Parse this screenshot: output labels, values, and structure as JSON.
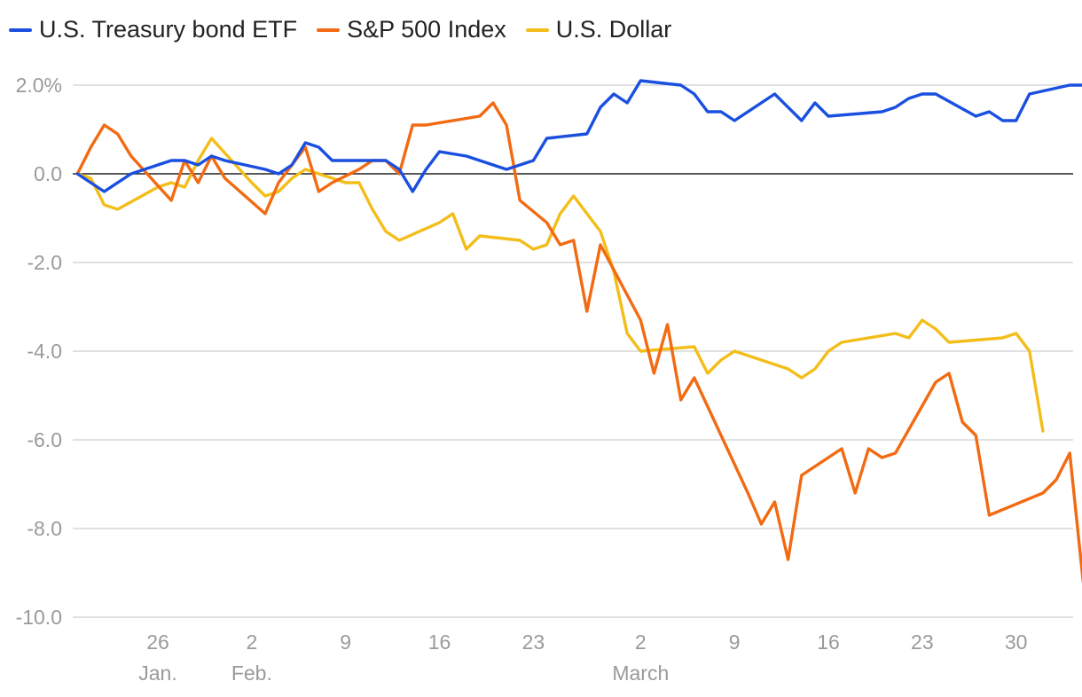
{
  "chart_data": {
    "type": "line",
    "title": "",
    "xlabel": "",
    "ylabel": "",
    "ylim": [
      -10,
      2.4
    ],
    "grid": true,
    "legend_position": "top-left",
    "y_ticks": [
      {
        "value": 2,
        "label": "2.0%"
      },
      {
        "value": 0,
        "label": "0.0"
      },
      {
        "value": -2,
        "label": "-2.0"
      },
      {
        "value": -4,
        "label": "-4.0"
      },
      {
        "value": -6,
        "label": "-6.0"
      },
      {
        "value": -8,
        "label": "-8.0"
      },
      {
        "value": -10,
        "label": "-10.0"
      }
    ],
    "x_ticks": [
      {
        "date": "2020-01-26",
        "label": "26"
      },
      {
        "date": "2020-02-02",
        "label": "2"
      },
      {
        "date": "2020-02-09",
        "label": "9"
      },
      {
        "date": "2020-02-16",
        "label": "16"
      },
      {
        "date": "2020-02-23",
        "label": "23"
      },
      {
        "date": "2020-03-02",
        "label": "2"
      },
      {
        "date": "2020-03-09",
        "label": "9"
      },
      {
        "date": "2020-03-16",
        "label": "16"
      },
      {
        "date": "2020-03-23",
        "label": "23"
      },
      {
        "date": "2020-03-30",
        "label": "30"
      }
    ],
    "month_labels": [
      {
        "date": "2020-01-26",
        "label": "Jan."
      },
      {
        "date": "2020-02-02",
        "label": "Feb."
      },
      {
        "date": "2020-03-02",
        "label": "March"
      }
    ],
    "series": [
      {
        "name": "U.S. Treasury bond ETF",
        "color": "#1a4fe0",
        "points": [
          [
            "2020-01-20",
            0.0
          ],
          [
            "2020-01-21",
            -0.2
          ],
          [
            "2020-01-22",
            -0.4
          ],
          [
            "2020-01-23",
            -0.2
          ],
          [
            "2020-01-24",
            0.0
          ],
          [
            "2020-01-27",
            0.3
          ],
          [
            "2020-01-28",
            0.3
          ],
          [
            "2020-01-29",
            0.2
          ],
          [
            "2020-01-30",
            0.4
          ],
          [
            "2020-01-31",
            0.3
          ],
          [
            "2020-02-03",
            0.1
          ],
          [
            "2020-02-04",
            0.0
          ],
          [
            "2020-02-05",
            0.2
          ],
          [
            "2020-02-06",
            0.7
          ],
          [
            "2020-02-07",
            0.6
          ],
          [
            "2020-02-08",
            0.3
          ],
          [
            "2020-02-10",
            0.3
          ],
          [
            "2020-02-11",
            0.3
          ],
          [
            "2020-02-12",
            0.3
          ],
          [
            "2020-02-13",
            0.1
          ],
          [
            "2020-02-14",
            -0.4
          ],
          [
            "2020-02-15",
            0.1
          ],
          [
            "2020-02-16",
            0.5
          ],
          [
            "2020-02-18",
            0.4
          ],
          [
            "2020-02-20",
            0.2
          ],
          [
            "2020-02-21",
            0.1
          ],
          [
            "2020-02-22",
            0.2
          ],
          [
            "2020-02-23",
            0.3
          ],
          [
            "2020-02-24",
            0.8
          ],
          [
            "2020-02-27",
            0.9
          ],
          [
            "2020-02-28",
            1.5
          ],
          [
            "2020-02-29",
            1.8
          ],
          [
            "2020-03-01",
            1.6
          ],
          [
            "2020-03-02",
            2.1
          ],
          [
            "2020-03-05",
            2.0
          ],
          [
            "2020-03-06",
            1.8
          ],
          [
            "2020-03-07",
            1.4
          ],
          [
            "2020-03-08",
            1.4
          ],
          [
            "2020-03-09",
            1.2
          ],
          [
            "2020-03-12",
            1.8
          ],
          [
            "2020-03-14",
            1.2
          ],
          [
            "2020-03-15",
            1.6
          ],
          [
            "2020-03-16",
            1.3
          ],
          [
            "2020-03-20",
            1.4
          ],
          [
            "2020-03-21",
            1.5
          ],
          [
            "2020-03-22",
            1.7
          ],
          [
            "2020-03-23",
            1.8
          ],
          [
            "2020-03-24",
            1.8
          ],
          [
            "2020-03-27",
            1.3
          ],
          [
            "2020-03-28",
            1.4
          ],
          [
            "2020-03-29",
            1.2
          ],
          [
            "2020-03-30",
            1.2
          ],
          [
            "2020-03-31",
            1.8
          ],
          [
            "2020-04-03",
            2.0
          ],
          [
            "2020-04-04",
            2.0
          ],
          [
            "2020-04-05",
            1.9
          ],
          [
            "2020-04-06",
            2.6
          ]
        ]
      },
      {
        "name": "S&P 500 Index",
        "color": "#f26a12",
        "points": [
          [
            "2020-01-20",
            0.0
          ],
          [
            "2020-01-21",
            0.6
          ],
          [
            "2020-01-22",
            1.1
          ],
          [
            "2020-01-23",
            0.9
          ],
          [
            "2020-01-24",
            0.4
          ],
          [
            "2020-01-27",
            -0.6
          ],
          [
            "2020-01-28",
            0.3
          ],
          [
            "2020-01-29",
            -0.2
          ],
          [
            "2020-01-30",
            0.4
          ],
          [
            "2020-01-31",
            -0.1
          ],
          [
            "2020-02-03",
            -0.9
          ],
          [
            "2020-02-04",
            -0.2
          ],
          [
            "2020-02-05",
            0.2
          ],
          [
            "2020-02-06",
            0.6
          ],
          [
            "2020-02-07",
            -0.4
          ],
          [
            "2020-02-08",
            -0.2
          ],
          [
            "2020-02-10",
            0.1
          ],
          [
            "2020-02-11",
            0.3
          ],
          [
            "2020-02-12",
            0.3
          ],
          [
            "2020-02-13",
            0.0
          ],
          [
            "2020-02-14",
            1.1
          ],
          [
            "2020-02-15",
            1.1
          ],
          [
            "2020-02-19",
            1.3
          ],
          [
            "2020-02-20",
            1.6
          ],
          [
            "2020-02-21",
            1.1
          ],
          [
            "2020-02-22",
            -0.6
          ],
          [
            "2020-02-24",
            -1.1
          ],
          [
            "2020-02-25",
            -1.6
          ],
          [
            "2020-02-26",
            -1.5
          ],
          [
            "2020-02-27",
            -3.1
          ],
          [
            "2020-02-28",
            -1.6
          ],
          [
            "2020-03-02",
            -3.3
          ],
          [
            "2020-03-03",
            -4.5
          ],
          [
            "2020-03-04",
            -3.4
          ],
          [
            "2020-03-05",
            -5.1
          ],
          [
            "2020-03-06",
            -4.6
          ],
          [
            "2020-03-10",
            -7.2
          ],
          [
            "2020-03-11",
            -7.9
          ],
          [
            "2020-03-12",
            -7.4
          ],
          [
            "2020-03-13",
            -8.7
          ],
          [
            "2020-03-14",
            -6.8
          ],
          [
            "2020-03-17",
            -6.2
          ],
          [
            "2020-03-18",
            -7.2
          ],
          [
            "2020-03-19",
            -6.2
          ],
          [
            "2020-03-20",
            -6.4
          ],
          [
            "2020-03-21",
            -6.3
          ],
          [
            "2020-03-24",
            -4.7
          ],
          [
            "2020-03-25",
            -4.5
          ],
          [
            "2020-03-26",
            -5.6
          ],
          [
            "2020-03-27",
            -5.9
          ],
          [
            "2020-03-28",
            -7.7
          ],
          [
            "2020-04-01",
            -7.2
          ],
          [
            "2020-04-02",
            -6.9
          ],
          [
            "2020-04-03",
            -6.3
          ],
          [
            "2020-04-04",
            -9.2
          ]
        ]
      },
      {
        "name": "U.S. Dollar",
        "color": "#f3bd1a",
        "points": [
          [
            "2020-01-20",
            0.0
          ],
          [
            "2020-01-21",
            -0.1
          ],
          [
            "2020-01-22",
            -0.7
          ],
          [
            "2020-01-23",
            -0.8
          ],
          [
            "2020-01-26",
            -0.3
          ],
          [
            "2020-01-27",
            -0.2
          ],
          [
            "2020-01-28",
            -0.3
          ],
          [
            "2020-01-29",
            0.3
          ],
          [
            "2020-01-30",
            0.8
          ],
          [
            "2020-02-02",
            -0.2
          ],
          [
            "2020-02-03",
            -0.5
          ],
          [
            "2020-02-04",
            -0.4
          ],
          [
            "2020-02-05",
            -0.1
          ],
          [
            "2020-02-06",
            0.1
          ],
          [
            "2020-02-07",
            0.0
          ],
          [
            "2020-02-08",
            -0.1
          ],
          [
            "2020-02-09",
            -0.2
          ],
          [
            "2020-02-10",
            -0.2
          ],
          [
            "2020-02-11",
            -0.8
          ],
          [
            "2020-02-12",
            -1.3
          ],
          [
            "2020-02-13",
            -1.5
          ],
          [
            "2020-02-16",
            -1.1
          ],
          [
            "2020-02-17",
            -0.9
          ],
          [
            "2020-02-18",
            -1.7
          ],
          [
            "2020-02-19",
            -1.4
          ],
          [
            "2020-02-22",
            -1.5
          ],
          [
            "2020-02-23",
            -1.7
          ],
          [
            "2020-02-24",
            -1.6
          ],
          [
            "2020-02-25",
            -0.9
          ],
          [
            "2020-02-26",
            -0.5
          ],
          [
            "2020-02-28",
            -1.3
          ],
          [
            "2020-02-29",
            -2.2
          ],
          [
            "2020-03-01",
            -3.6
          ],
          [
            "2020-03-02",
            -4.0
          ],
          [
            "2020-03-06",
            -3.9
          ],
          [
            "2020-03-07",
            -4.5
          ],
          [
            "2020-03-08",
            -4.2
          ],
          [
            "2020-03-09",
            -4.0
          ],
          [
            "2020-03-13",
            -4.4
          ],
          [
            "2020-03-14",
            -4.6
          ],
          [
            "2020-03-15",
            -4.4
          ],
          [
            "2020-03-16",
            -4.0
          ],
          [
            "2020-03-17",
            -3.8
          ],
          [
            "2020-03-21",
            -3.6
          ],
          [
            "2020-03-22",
            -3.7
          ],
          [
            "2020-03-23",
            -3.3
          ],
          [
            "2020-03-24",
            -3.5
          ],
          [
            "2020-03-25",
            -3.8
          ],
          [
            "2020-03-29",
            -3.7
          ],
          [
            "2020-03-30",
            -3.6
          ],
          [
            "2020-03-31",
            -4.0
          ],
          [
            "2020-04-01",
            -5.8
          ]
        ]
      }
    ]
  }
}
